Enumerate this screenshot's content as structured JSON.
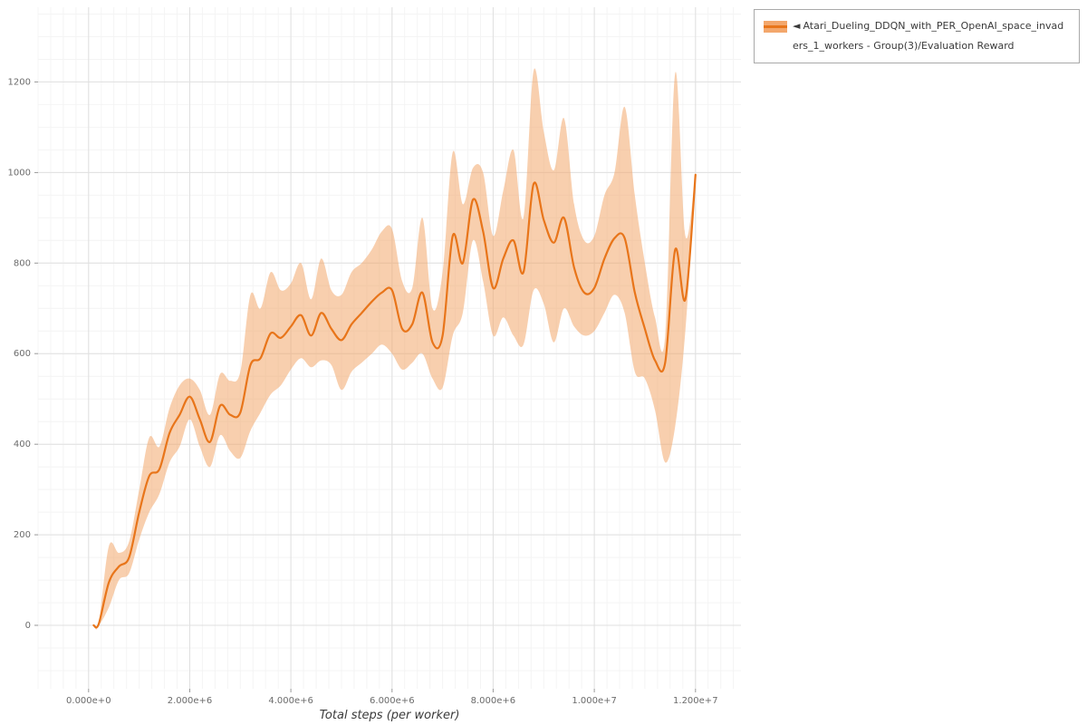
{
  "legend": {
    "marker": "◄",
    "label": "Atari_Dueling_DDQN_with_PER_OpenAI_space_invaders_1_workers - Group(3)/Evaluation Reward"
  },
  "colors": {
    "line": "#e8751a",
    "band": "#f3a76c",
    "grid_major": "#e0e0e0",
    "grid_minor": "#f4f4f4",
    "tick_mark": "#999999",
    "tick_text": "#6b6b6b"
  },
  "chart_data": {
    "type": "line",
    "title": "",
    "xlabel": "Total steps (per worker)",
    "ylabel": "",
    "xlim": [
      -1000000,
      12900000
    ],
    "ylim": [
      -140,
      1365
    ],
    "grid": true,
    "legend_position": "top-right",
    "x_ticks": [
      {
        "v": 0,
        "label": "0.000e+0"
      },
      {
        "v": 2000000,
        "label": "2.000e+6"
      },
      {
        "v": 4000000,
        "label": "4.000e+6"
      },
      {
        "v": 6000000,
        "label": "6.000e+6"
      },
      {
        "v": 8000000,
        "label": "8.000e+6"
      },
      {
        "v": 10000000,
        "label": "1.000e+7"
      },
      {
        "v": 12000000,
        "label": "1.200e+7"
      }
    ],
    "y_ticks": [
      {
        "v": 0,
        "label": "0"
      },
      {
        "v": 200,
        "label": "200"
      },
      {
        "v": 400,
        "label": "400"
      },
      {
        "v": 600,
        "label": "600"
      },
      {
        "v": 800,
        "label": "800"
      },
      {
        "v": 1000,
        "label": "1000"
      },
      {
        "v": 1200,
        "label": "1200"
      }
    ],
    "x": [
      100000,
      200000,
      400000,
      600000,
      800000,
      1000000,
      1200000,
      1400000,
      1600000,
      1800000,
      2000000,
      2200000,
      2400000,
      2600000,
      2800000,
      3000000,
      3200000,
      3400000,
      3600000,
      3800000,
      4000000,
      4200000,
      4400000,
      4600000,
      4800000,
      5000000,
      5200000,
      5400000,
      5600000,
      5800000,
      6000000,
      6200000,
      6400000,
      6600000,
      6800000,
      7000000,
      7200000,
      7400000,
      7600000,
      7800000,
      8000000,
      8200000,
      8400000,
      8600000,
      8800000,
      9000000,
      9200000,
      9400000,
      9600000,
      9800000,
      10000000,
      10200000,
      10400000,
      10600000,
      10800000,
      11000000,
      11200000,
      11400000,
      11600000,
      11800000,
      12000000
    ],
    "series": [
      {
        "name": "Atari_Dueling_DDQN_with_PER_OpenAI_space_invaders_1_workers - Group(3)/Evaluation Reward (mean)",
        "values": [
          0,
          3,
          95,
          130,
          150,
          250,
          330,
          345,
          425,
          465,
          505,
          455,
          405,
          485,
          465,
          470,
          575,
          590,
          645,
          635,
          660,
          685,
          640,
          690,
          655,
          630,
          665,
          690,
          715,
          735,
          740,
          655,
          665,
          735,
          625,
          640,
          860,
          800,
          940,
          870,
          745,
          810,
          850,
          780,
          975,
          895,
          845,
          900,
          790,
          735,
          745,
          810,
          855,
          855,
          735,
          655,
          585,
          580,
          830,
          720,
          995
        ]
      },
      {
        "name": "band_upper",
        "values": [
          0,
          5,
          175,
          160,
          185,
          300,
          415,
          395,
          480,
          530,
          545,
          520,
          465,
          555,
          540,
          560,
          730,
          700,
          780,
          740,
          755,
          800,
          720,
          810,
          740,
          730,
          780,
          800,
          830,
          870,
          875,
          760,
          745,
          900,
          700,
          780,
          1045,
          930,
          1010,
          1000,
          860,
          960,
          1050,
          900,
          1225,
          1090,
          1005,
          1120,
          930,
          850,
          860,
          950,
          1000,
          1145,
          950,
          800,
          680,
          640,
          1220,
          860,
          1000
        ]
      },
      {
        "name": "band_lower",
        "values": [
          0,
          0,
          40,
          100,
          115,
          190,
          250,
          290,
          360,
          395,
          455,
          395,
          350,
          420,
          385,
          370,
          430,
          470,
          510,
          530,
          565,
          590,
          570,
          585,
          575,
          520,
          560,
          580,
          600,
          620,
          600,
          565,
          580,
          600,
          545,
          525,
          640,
          690,
          850,
          760,
          640,
          680,
          640,
          620,
          740,
          710,
          625,
          700,
          660,
          640,
          650,
          690,
          730,
          690,
          560,
          545,
          475,
          360,
          440,
          650,
          985
        ]
      }
    ]
  }
}
